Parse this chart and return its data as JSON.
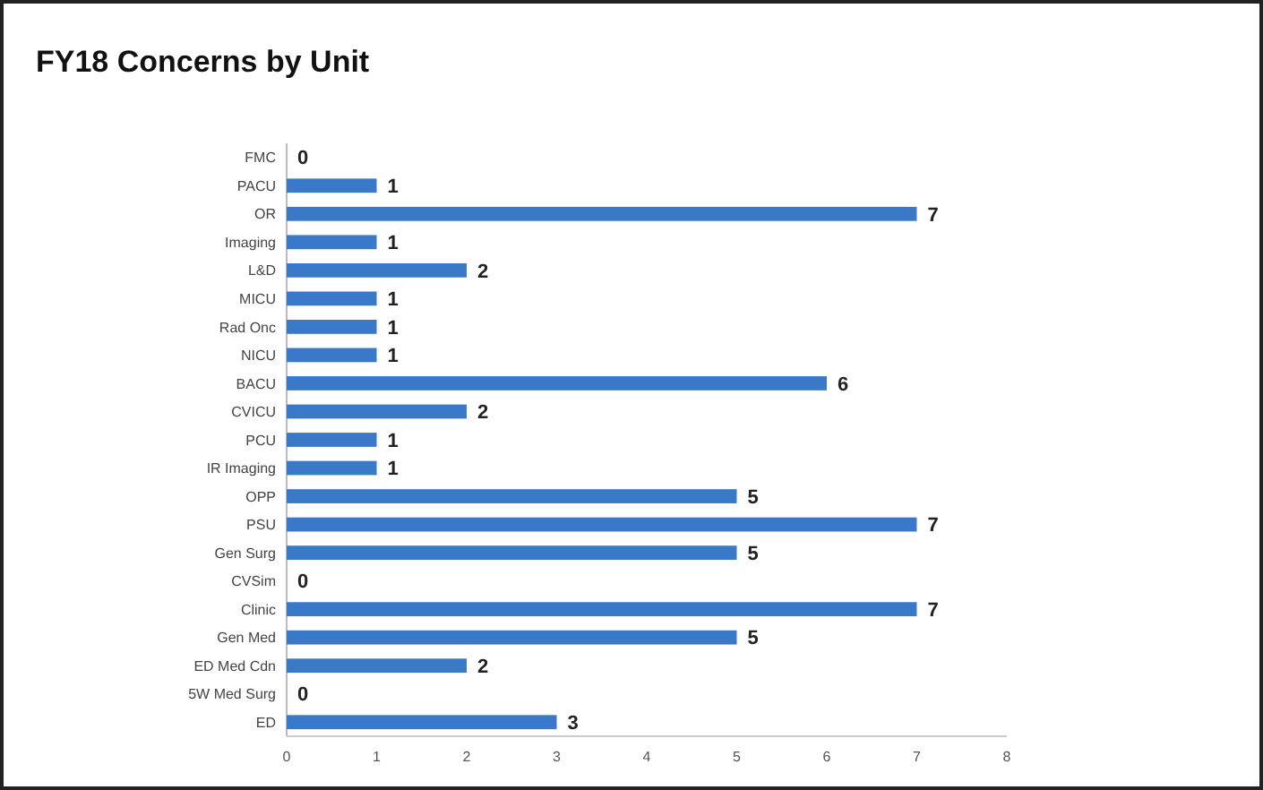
{
  "chart_data": {
    "type": "bar",
    "title": "FY18 Concerns by Unit",
    "orientation": "horizontal",
    "categories": [
      "FMC",
      "PACU",
      "OR",
      "Imaging",
      "L&D",
      "MICU",
      "Rad Onc",
      "NICU",
      "BACU",
      "CVICU",
      "PCU",
      "IR Imaging",
      "OPP",
      "PSU",
      "Gen Surg",
      "CVSim",
      "Clinic",
      "Gen Med",
      "ED Med Cdn",
      "5W Med Surg",
      "ED"
    ],
    "values": [
      0,
      1,
      7,
      1,
      2,
      1,
      1,
      1,
      6,
      2,
      1,
      1,
      5,
      7,
      5,
      0,
      7,
      5,
      2,
      0,
      3
    ],
    "color": "#3a78c8",
    "xlim": [
      0,
      8
    ],
    "xticks": [
      0,
      1,
      2,
      3,
      4,
      5,
      6,
      7,
      8
    ],
    "grid": false,
    "data_labels": true
  }
}
